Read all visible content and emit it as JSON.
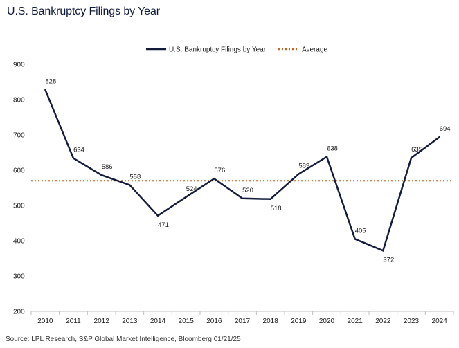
{
  "title": "U.S. Bankruptcy Filings by Year",
  "source": "Source: LPL Research, S&P Global Market Intelligence, Bloomberg 01/21/25",
  "colors": {
    "line": "#141c3c",
    "average": "#c8641e",
    "axis": "#bfbfbf"
  },
  "chart_data": {
    "type": "line",
    "categories": [
      "2010",
      "2011",
      "2012",
      "2013",
      "2014",
      "2015",
      "2016",
      "2017",
      "2018",
      "2019",
      "2020",
      "2021",
      "2022",
      "2023",
      "2024"
    ],
    "series": [
      {
        "name": "U.S. Bankruptcy Filings by Year",
        "values": [
          828,
          634,
          586,
          558,
          471,
          524,
          576,
          520,
          518,
          589,
          638,
          405,
          372,
          635,
          694
        ]
      }
    ],
    "average": {
      "name": "Average",
      "value": 570
    },
    "data_labels": [
      "828",
      "634",
      "586",
      "558",
      "471",
      "524",
      "576",
      "520",
      "518",
      "589",
      "638",
      "405",
      "372",
      "635",
      "694"
    ],
    "ylim": [
      200,
      900
    ],
    "yticks": [
      "200",
      "300",
      "400",
      "500",
      "600",
      "700",
      "800",
      "900"
    ],
    "legend": {
      "position": "top-center",
      "items": [
        "U.S. Bankruptcy Filings by Year",
        "Average"
      ]
    },
    "grid": false
  }
}
